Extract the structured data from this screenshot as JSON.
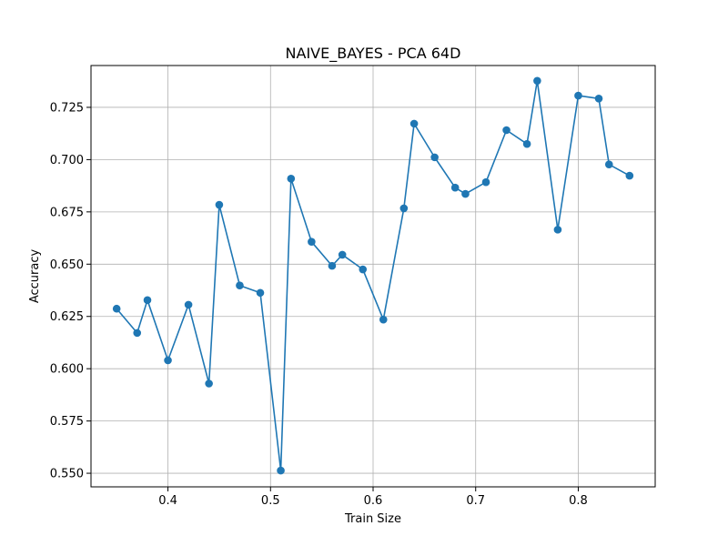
{
  "chart_data": {
    "type": "line",
    "title": "NAIVE_BAYES - PCA 64D",
    "xlabel": "Train Size",
    "ylabel": "Accuracy",
    "xlim": [
      0.325,
      0.875
    ],
    "ylim": [
      0.5435,
      0.745
    ],
    "grid": true,
    "xticks": [
      0.4,
      0.5,
      0.6,
      0.7,
      0.8
    ],
    "xtick_labels": [
      "0.4",
      "0.5",
      "0.6",
      "0.7",
      "0.8"
    ],
    "yticks": [
      0.55,
      0.575,
      0.6,
      0.625,
      0.65,
      0.675,
      0.7,
      0.725
    ],
    "ytick_labels": [
      "0.550",
      "0.575",
      "0.600",
      "0.625",
      "0.650",
      "0.675",
      "0.700",
      "0.725"
    ],
    "series": [
      {
        "color": "#1f77b4",
        "marker": "circle",
        "x": [
          0.35,
          0.37,
          0.38,
          0.4,
          0.42,
          0.44,
          0.45,
          0.47,
          0.49,
          0.51,
          0.52,
          0.54,
          0.56,
          0.57,
          0.59,
          0.61,
          0.63,
          0.64,
          0.66,
          0.68,
          0.69,
          0.71,
          0.73,
          0.75,
          0.76,
          0.78,
          0.8,
          0.82,
          0.83,
          0.85
        ],
        "y": [
          0.6287,
          0.6171,
          0.6328,
          0.604,
          0.6306,
          0.5929,
          0.6784,
          0.6398,
          0.6363,
          0.5513,
          0.6909,
          0.6607,
          0.6492,
          0.6545,
          0.6475,
          0.6235,
          0.6767,
          0.7172,
          0.7011,
          0.6866,
          0.6836,
          0.6892,
          0.7141,
          0.7075,
          0.7377,
          0.6665,
          0.7306,
          0.7292,
          0.6977,
          0.6923
        ]
      }
    ]
  }
}
